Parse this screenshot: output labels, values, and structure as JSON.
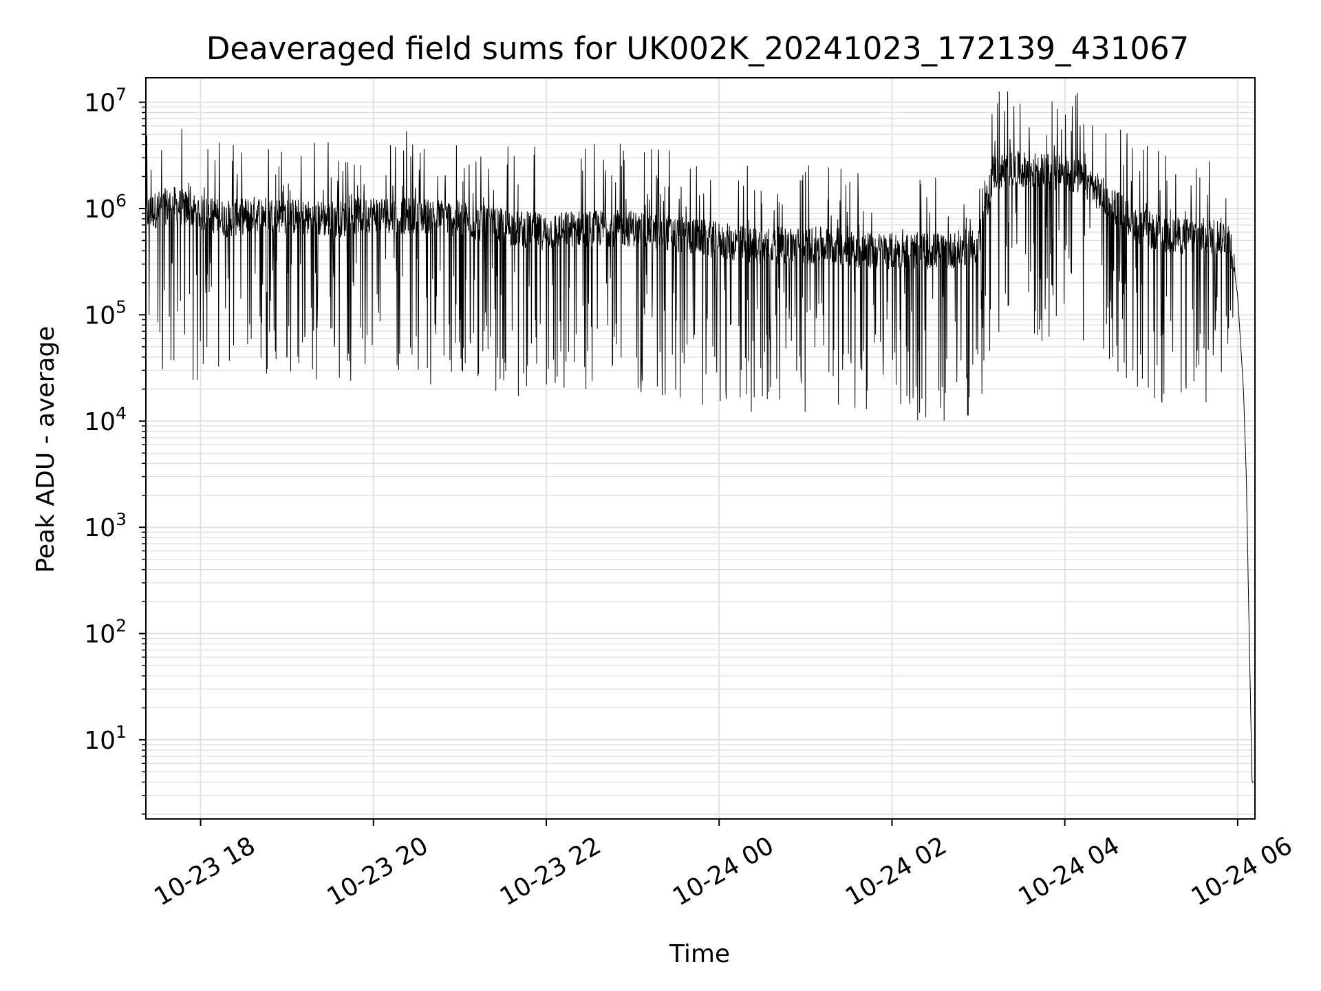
{
  "chart_data": {
    "type": "line",
    "title": "Deaveraged field sums for UK002K_20241023_172139_431067",
    "xlabel": "Time",
    "ylabel": "Peak ADU - average",
    "yscale": "log",
    "grid": true,
    "x_tick_labels": [
      "10-23 18",
      "10-23 20",
      "10-23 22",
      "10-24 00",
      "10-24 02",
      "10-24 04",
      "10-24 06"
    ],
    "y_tick_labels": [
      {
        "base": "10",
        "exp": "1"
      },
      {
        "base": "10",
        "exp": "2"
      },
      {
        "base": "10",
        "exp": "3"
      },
      {
        "base": "10",
        "exp": "4"
      },
      {
        "base": "10",
        "exp": "5"
      },
      {
        "base": "10",
        "exp": "6"
      },
      {
        "base": "10",
        "exp": "7"
      }
    ],
    "x_range": [
      "2024-10-23 17:22",
      "2024-10-24 06:12"
    ],
    "ylim": [
      1.8,
      17000000
    ],
    "line_color": "#000000",
    "series": [
      {
        "x": [
          "2024-10-23 17:22",
          "2024-10-23 17:40",
          "2024-10-23 18:00",
          "2024-10-23 18:20",
          "2024-10-23 18:40",
          "2024-10-23 19:00",
          "2024-10-23 19:20",
          "2024-10-23 19:40",
          "2024-10-23 20:00",
          "2024-10-23 20:20",
          "2024-10-23 20:40",
          "2024-10-23 21:00",
          "2024-10-23 21:20",
          "2024-10-23 21:40",
          "2024-10-23 22:00",
          "2024-10-23 22:20",
          "2024-10-23 22:40",
          "2024-10-23 23:00",
          "2024-10-23 23:20",
          "2024-10-23 23:40",
          "2024-10-24 00:00",
          "2024-10-24 00:20",
          "2024-10-24 00:40",
          "2024-10-24 01:00",
          "2024-10-24 01:20",
          "2024-10-24 01:40",
          "2024-10-24 02:00",
          "2024-10-24 02:20",
          "2024-10-24 02:40",
          "2024-10-24 03:00",
          "2024-10-24 03:10",
          "2024-10-24 03:30",
          "2024-10-24 03:50",
          "2024-10-24 04:10",
          "2024-10-24 04:30",
          "2024-10-24 04:50",
          "2024-10-24 05:10",
          "2024-10-24 05:30",
          "2024-10-24 05:50",
          "2024-10-24 05:55",
          "2024-10-24 06:00",
          "2024-10-24 06:04",
          "2024-10-24 06:06",
          "2024-10-24 06:08",
          "2024-10-24 06:10",
          "2024-10-24 06:12"
        ],
        "y": [
          900000,
          1100000,
          900000,
          800000,
          900000,
          850000,
          800000,
          800000,
          900000,
          850000,
          850000,
          800000,
          700000,
          650000,
          600000,
          650000,
          650000,
          650000,
          600000,
          550000,
          500000,
          450000,
          450000,
          450000,
          450000,
          400000,
          400000,
          400000,
          400000,
          450000,
          2200000,
          2300000,
          2200000,
          2000000,
          1200000,
          700000,
          550000,
          550000,
          550000,
          500000,
          150000,
          20000,
          3000,
          100,
          4,
          4
        ]
      }
    ]
  }
}
